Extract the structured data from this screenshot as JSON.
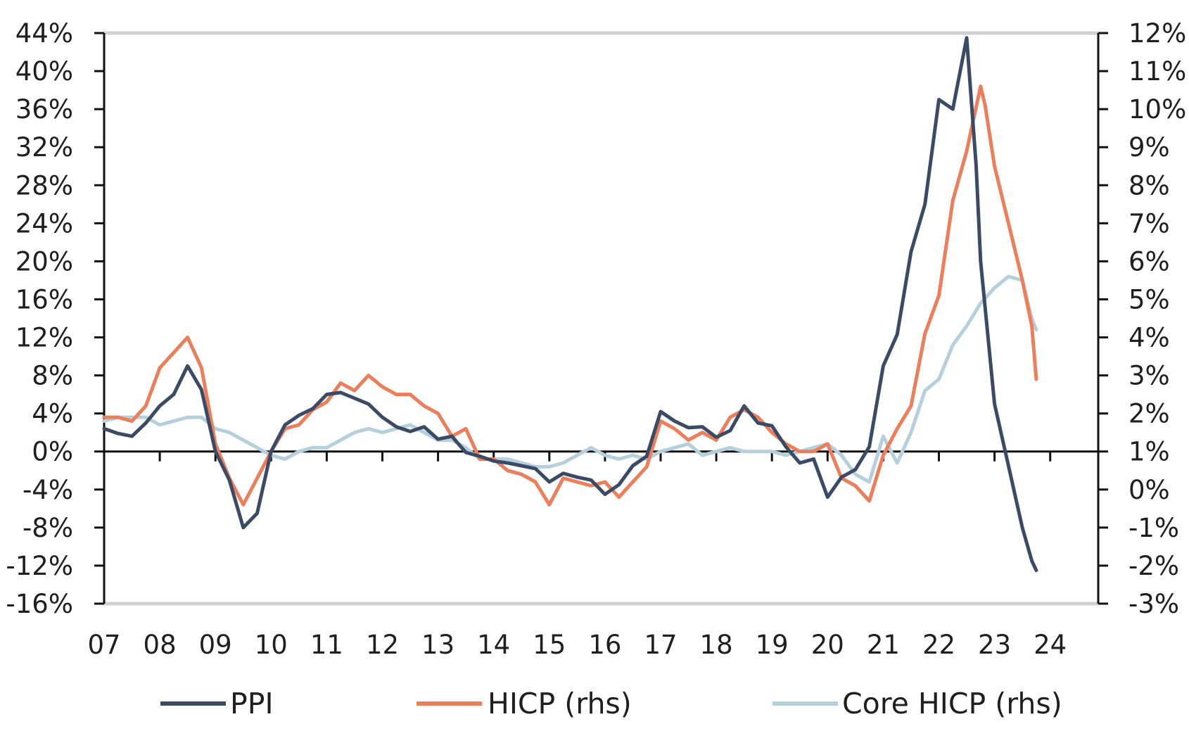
{
  "chart_data": {
    "type": "line",
    "title": "",
    "xlabel": "",
    "ylabel": "",
    "y_ticks_left": [
      "44%",
      "40%",
      "36%",
      "32%",
      "28%",
      "24%",
      "20%",
      "16%",
      "12%",
      "8%",
      "4%",
      "0%",
      "-4%",
      "-8%",
      "-12%",
      "-16%"
    ],
    "y_ticks_right": [
      "12%",
      "11%",
      "10%",
      "9%",
      "8%",
      "7%",
      "6%",
      "5%",
      "4%",
      "3%",
      "2%",
      "1%",
      "0%",
      "-1%",
      "-2%",
      "-3%"
    ],
    "x_ticks": [
      "07",
      "08",
      "09",
      "10",
      "11",
      "12",
      "13",
      "14",
      "15",
      "16",
      "17",
      "18",
      "19",
      "20",
      "21",
      "22",
      "23",
      "24"
    ],
    "ylim_left": [
      -16,
      44
    ],
    "ylim_right": [
      -3,
      12
    ],
    "grid": false,
    "legend_position": "bottom",
    "series": [
      {
        "name": "PPI",
        "axis": "left",
        "color": "#3b4b66",
        "x": [
          2007.0,
          2007.25,
          2007.5,
          2007.75,
          2008.0,
          2008.25,
          2008.5,
          2008.75,
          2009.0,
          2009.25,
          2009.5,
          2009.75,
          2010.0,
          2010.25,
          2010.5,
          2010.75,
          2011.0,
          2011.25,
          2011.5,
          2011.75,
          2012.0,
          2012.25,
          2012.5,
          2012.75,
          2013.0,
          2013.25,
          2013.5,
          2013.75,
          2014.0,
          2014.25,
          2014.5,
          2014.75,
          2015.0,
          2015.25,
          2015.5,
          2015.75,
          2016.0,
          2016.25,
          2016.5,
          2016.75,
          2017.0,
          2017.25,
          2017.5,
          2017.75,
          2018.0,
          2018.25,
          2018.5,
          2018.75,
          2019.0,
          2019.25,
          2019.5,
          2019.75,
          2020.0,
          2020.25,
          2020.5,
          2020.75,
          2021.0,
          2021.25,
          2021.5,
          2021.75,
          2022.0,
          2022.25,
          2022.5,
          2022.67,
          2022.75,
          2023.0,
          2023.25,
          2023.5,
          2023.67,
          2023.75
        ],
        "values": [
          2.4,
          1.9,
          1.6,
          3.0,
          4.8,
          6.0,
          9.0,
          6.5,
          0.0,
          -3.0,
          -8.0,
          -6.5,
          0.0,
          2.8,
          3.8,
          4.5,
          6.0,
          6.2,
          5.6,
          5.0,
          3.6,
          2.6,
          2.1,
          2.6,
          1.3,
          1.6,
          -0.1,
          -0.5,
          -1.0,
          -1.2,
          -1.5,
          -1.8,
          -3.2,
          -2.3,
          -2.7,
          -3.0,
          -4.5,
          -3.5,
          -1.5,
          -0.5,
          4.2,
          3.2,
          2.5,
          2.6,
          1.5,
          2.2,
          4.8,
          3.0,
          2.7,
          0.5,
          -1.2,
          -0.8,
          -4.8,
          -2.7,
          -1.9,
          0.5,
          9.0,
          12.3,
          21.0,
          26.0,
          37.0,
          36.0,
          43.5,
          30.0,
          20.0,
          5.0,
          -1.5,
          -8.0,
          -11.5,
          -12.5
        ]
      },
      {
        "name": "HICP (rhs)",
        "axis": "right",
        "color": "#ee7d5a",
        "x": [
          2007.0,
          2007.25,
          2007.5,
          2007.75,
          2008.0,
          2008.25,
          2008.5,
          2008.75,
          2009.0,
          2009.25,
          2009.5,
          2009.75,
          2010.0,
          2010.25,
          2010.5,
          2010.75,
          2011.0,
          2011.25,
          2011.5,
          2011.75,
          2012.0,
          2012.25,
          2012.5,
          2012.75,
          2013.0,
          2013.25,
          2013.5,
          2013.75,
          2014.0,
          2014.25,
          2014.5,
          2014.75,
          2015.0,
          2015.25,
          2015.5,
          2015.75,
          2016.0,
          2016.25,
          2016.5,
          2016.75,
          2017.0,
          2017.25,
          2017.5,
          2017.75,
          2018.0,
          2018.25,
          2018.5,
          2018.75,
          2019.0,
          2019.25,
          2019.5,
          2019.75,
          2020.0,
          2020.25,
          2020.5,
          2020.75,
          2021.0,
          2021.25,
          2021.5,
          2021.75,
          2022.0,
          2022.25,
          2022.5,
          2022.75,
          2022.83,
          2023.0,
          2023.25,
          2023.5,
          2023.67,
          2023.75
        ],
        "values": [
          1.9,
          1.9,
          1.8,
          2.2,
          3.2,
          3.6,
          4.0,
          3.2,
          1.2,
          0.3,
          -0.4,
          0.3,
          1.0,
          1.6,
          1.7,
          2.1,
          2.3,
          2.8,
          2.6,
          3.0,
          2.7,
          2.5,
          2.5,
          2.2,
          2.0,
          1.4,
          1.6,
          0.8,
          0.8,
          0.5,
          0.4,
          0.2,
          -0.4,
          0.3,
          0.2,
          0.1,
          0.2,
          -0.2,
          0.2,
          0.6,
          1.8,
          1.6,
          1.3,
          1.5,
          1.3,
          1.9,
          2.1,
          1.9,
          1.5,
          1.2,
          1.0,
          1.0,
          1.2,
          0.3,
          0.1,
          -0.3,
          0.9,
          1.6,
          2.2,
          4.1,
          5.1,
          7.6,
          8.9,
          10.6,
          10.1,
          8.5,
          7.0,
          5.5,
          4.3,
          2.9
        ]
      },
      {
        "name": "Core HICP (rhs)",
        "axis": "right",
        "color": "#b5d0dc",
        "x": [
          2007.0,
          2007.25,
          2007.5,
          2007.75,
          2008.0,
          2008.25,
          2008.5,
          2008.75,
          2009.0,
          2009.25,
          2009.5,
          2009.75,
          2010.0,
          2010.25,
          2010.5,
          2010.75,
          2011.0,
          2011.25,
          2011.5,
          2011.75,
          2012.0,
          2012.25,
          2012.5,
          2012.75,
          2013.0,
          2013.25,
          2013.5,
          2013.75,
          2014.0,
          2014.25,
          2014.5,
          2014.75,
          2015.0,
          2015.25,
          2015.5,
          2015.75,
          2016.0,
          2016.25,
          2016.5,
          2016.75,
          2017.0,
          2017.25,
          2017.5,
          2017.75,
          2018.0,
          2018.25,
          2018.5,
          2018.75,
          2019.0,
          2019.25,
          2019.5,
          2019.75,
          2020.0,
          2020.25,
          2020.5,
          2020.75,
          2021.0,
          2021.25,
          2021.5,
          2021.75,
          2022.0,
          2022.25,
          2022.5,
          2022.75,
          2023.0,
          2023.25,
          2023.5,
          2023.67,
          2023.75
        ],
        "values": [
          1.8,
          1.9,
          1.9,
          1.9,
          1.7,
          1.8,
          1.9,
          1.9,
          1.6,
          1.5,
          1.3,
          1.1,
          0.9,
          0.8,
          1.0,
          1.1,
          1.1,
          1.3,
          1.5,
          1.6,
          1.5,
          1.6,
          1.7,
          1.5,
          1.3,
          1.3,
          1.1,
          0.8,
          0.8,
          0.8,
          0.7,
          0.6,
          0.6,
          0.7,
          0.9,
          1.1,
          0.9,
          0.8,
          0.9,
          0.8,
          1.0,
          1.1,
          1.2,
          0.9,
          1.0,
          1.1,
          1.0,
          1.0,
          1.0,
          0.9,
          1.0,
          1.1,
          1.2,
          0.9,
          0.4,
          0.2,
          1.4,
          0.7,
          1.5,
          2.6,
          2.9,
          3.8,
          4.3,
          4.9,
          5.3,
          5.6,
          5.5,
          4.5,
          4.2
        ]
      }
    ]
  }
}
